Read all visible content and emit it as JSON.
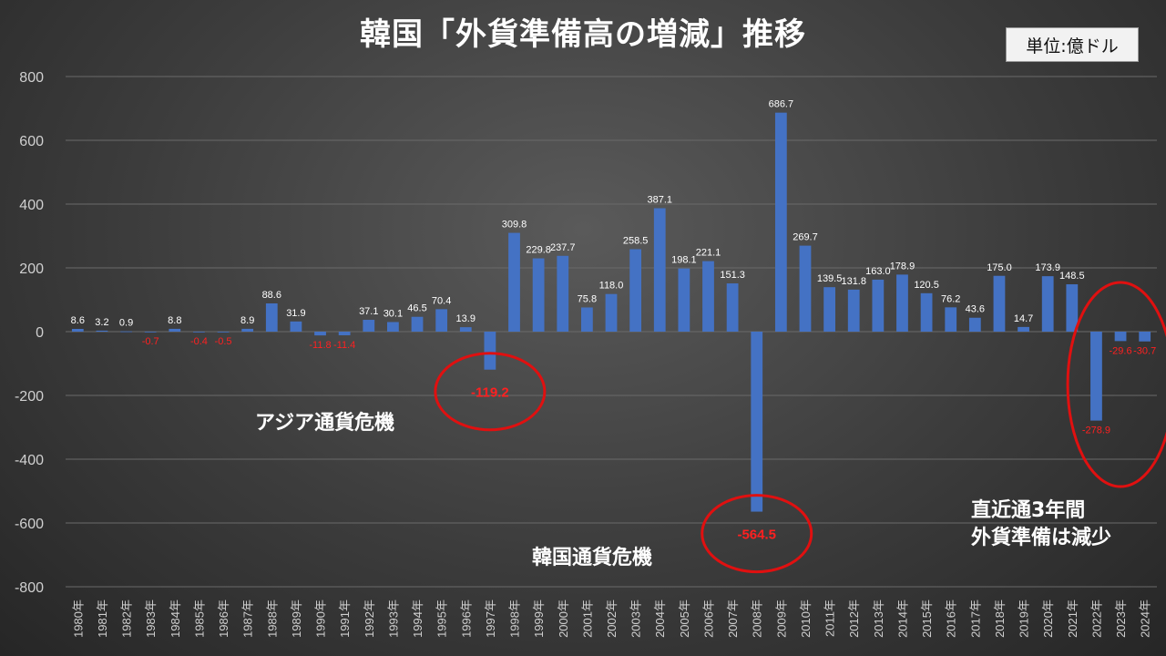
{
  "title": "韓国「外貨準備高の増減」推移",
  "unit_label": "単位:億ドル",
  "annotations": {
    "asia_crisis": "アジア通貨危機",
    "korea_crisis": "韓国通貨危機",
    "recent_line1": "直近通3年間",
    "recent_line2": "外貨準備は減少"
  },
  "colors": {
    "bar": "#4472c4",
    "positive_label": "#ffffff",
    "negative_label": "#ff2020",
    "circle": "#e01010",
    "grid": "#6a6a6a",
    "axis_text": "#d0d0d0"
  },
  "chart_data": {
    "type": "bar",
    "title": "韓国「外貨準備高の増減」推移",
    "ylim": [
      -800,
      800
    ],
    "yticks": [
      800,
      600,
      400,
      200,
      0,
      -200,
      -400,
      -600,
      -800
    ],
    "ytick_labels": [
      "800",
      "600",
      "400",
      "200",
      "0",
      "-200",
      "-400",
      "-600",
      "-800"
    ],
    "grid": true,
    "categories": [
      "1980年",
      "1981年",
      "1982年",
      "1983年",
      "1984年",
      "1985年",
      "1986年",
      "1987年",
      "1988年",
      "1989年",
      "1990年",
      "1991年",
      "1992年",
      "1993年",
      "1994年",
      "1995年",
      "1996年",
      "1997年",
      "1998年",
      "1999年",
      "2000年",
      "2001年",
      "2002年",
      "2003年",
      "2004年",
      "2005年",
      "2006年",
      "2007年",
      "2008年",
      "2009年",
      "2010年",
      "2011年",
      "2012年",
      "2013年",
      "2014年",
      "2015年",
      "2016年",
      "2017年",
      "2018年",
      "2019年",
      "2020年",
      "2021年",
      "2022年",
      "2023年",
      "2024年"
    ],
    "values": [
      8.6,
      3.2,
      0.9,
      -0.7,
      8.8,
      -0.4,
      -0.5,
      8.9,
      88.6,
      31.9,
      -11.8,
      -11.4,
      37.1,
      30.1,
      46.5,
      70.4,
      13.9,
      -119.2,
      309.8,
      229.8,
      237.7,
      75.8,
      118.0,
      258.5,
      387.1,
      198.1,
      221.1,
      151.3,
      -564.5,
      686.7,
      269.7,
      139.5,
      131.8,
      163.0,
      178.9,
      120.5,
      76.2,
      43.6,
      175.0,
      14.7,
      173.9,
      148.5,
      -278.9,
      -29.6,
      -30.7
    ],
    "data_labels": [
      "8.6",
      "3.2",
      "0.9",
      "-0.7",
      "8.8",
      "-0.4",
      "-0.5",
      "8.9",
      "88.6",
      "31.9",
      "-11.8",
      "-11.4",
      "37.1",
      "30.1",
      "46.5",
      "70.4",
      "13.9",
      "-119.2",
      "309.8",
      "229.8",
      "237.7",
      "75.8",
      "118.0",
      "258.5",
      "387.1",
      "198.1",
      "221.1",
      "151.3",
      "-564.5",
      "686.7",
      "269.7",
      "139.5",
      "131.8",
      "163.0",
      "178.9",
      "120.5",
      "76.2",
      "43.6",
      "175.0",
      "14.7",
      "173.9",
      "148.5",
      "-278.9",
      "-29.6",
      "-30.7"
    ],
    "highlighted_categories": [
      "1997年",
      "2008年"
    ],
    "highlighted_range": [
      "2022年",
      "2024年"
    ]
  }
}
